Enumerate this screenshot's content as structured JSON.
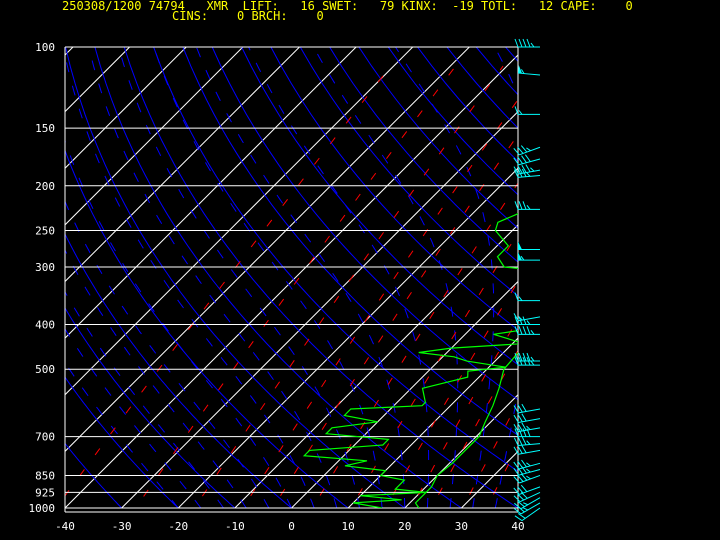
{
  "header": {
    "line1": "250308/1200 74794   XMR  LIFT:   16 SWET:   79 KINX:  -19 TOTL:   12 CAPE:    0",
    "line2": "CINS:    0 BRCH:    0"
  },
  "colors": {
    "background": "#000000",
    "isobar": "#ffffff",
    "isotherm": "#ffffff",
    "dry_adiabat": "#0000ff",
    "moist_adiabat": "#0000ff",
    "mixing_ratio": "#ff0000",
    "temperature": "#00ff00",
    "dewpoint": "#00ff00",
    "wind_barb": "#00ffff",
    "header_text": "#ffff00"
  },
  "chart_data": {
    "type": "line",
    "xlabel": "",
    "ylabel": "",
    "xlim": [
      -40,
      40
    ],
    "ylim_hpa": [
      1000,
      100
    ],
    "y_scale": "log",
    "x_tick_labels": [
      "-40",
      "-30",
      "-20",
      "-10",
      "0",
      "10",
      "20",
      "30",
      "40"
    ],
    "y_tick_labels": [
      "100",
      "150",
      "200",
      "250",
      "300",
      "400",
      "500",
      "700",
      "850",
      "925",
      "1000"
    ],
    "grid": true,
    "temperature": {
      "pressure": [
        1000,
        975,
        950,
        925,
        900,
        850,
        800,
        750,
        700,
        650,
        600,
        550,
        500,
        450,
        400,
        350,
        300,
        275,
        250,
        225,
        200,
        175,
        150,
        125,
        100
      ],
      "temp": [
        22.5,
        21,
        21,
        21,
        21,
        20,
        20.5,
        20.5,
        20.5,
        19,
        17.5,
        15.5,
        13,
        12.5,
        13,
        12.5,
        12,
        11.5,
        11.5,
        10.5,
        11,
        14.5,
        15.5,
        13.5,
        8
      ]
    },
    "dewpoint": {
      "pressure": [
        1000,
        975,
        960,
        940,
        925,
        910,
        900,
        870,
        850,
        830,
        810,
        790,
        770,
        750,
        730,
        710,
        690,
        670,
        650,
        630,
        610,
        600,
        590,
        550,
        520,
        505,
        495,
        480,
        470,
        460,
        450,
        440,
        420,
        400,
        380,
        360,
        345,
        330,
        310,
        300,
        285,
        270,
        250,
        240,
        230,
        220,
        210,
        200,
        185,
        170,
        150,
        125,
        100
      ],
      "dewp": [
        16,
        10,
        18,
        10,
        21,
        15,
        15,
        15,
        10,
        10,
        2,
        5,
        -7,
        -7,
        5,
        5,
        -7,
        -7,
        0,
        -7,
        -7,
        5,
        5,
        2,
        8,
        7,
        13,
        5,
        2,
        -5,
        0,
        12,
        5,
        15,
        11,
        12,
        15,
        10,
        8,
        -5,
        -8,
        -8,
        -13,
        -14,
        -12,
        -10,
        -8,
        -10,
        -10,
        -12,
        -10,
        -5,
        -3
      ]
    },
    "wind_barbs": {
      "pressure": [
        100,
        115,
        140,
        165,
        175,
        185,
        190,
        225,
        275,
        290,
        355,
        385,
        400,
        420,
        480,
        490,
        610,
        640,
        670,
        700,
        725,
        750,
        800,
        825,
        850,
        900,
        925,
        950,
        975,
        1000
      ],
      "speed_kt": [
        45,
        55,
        15,
        35,
        40,
        45,
        35,
        35,
        50,
        55,
        15,
        15,
        35,
        45,
        45,
        45,
        30,
        30,
        35,
        40,
        35,
        30,
        35,
        35,
        35,
        30,
        30,
        25,
        25,
        20
      ],
      "direction_deg": [
        270,
        275,
        270,
        250,
        255,
        260,
        265,
        270,
        270,
        270,
        270,
        260,
        270,
        270,
        270,
        270,
        260,
        260,
        260,
        270,
        265,
        260,
        255,
        255,
        250,
        250,
        245,
        240,
        240,
        235
      ]
    }
  }
}
